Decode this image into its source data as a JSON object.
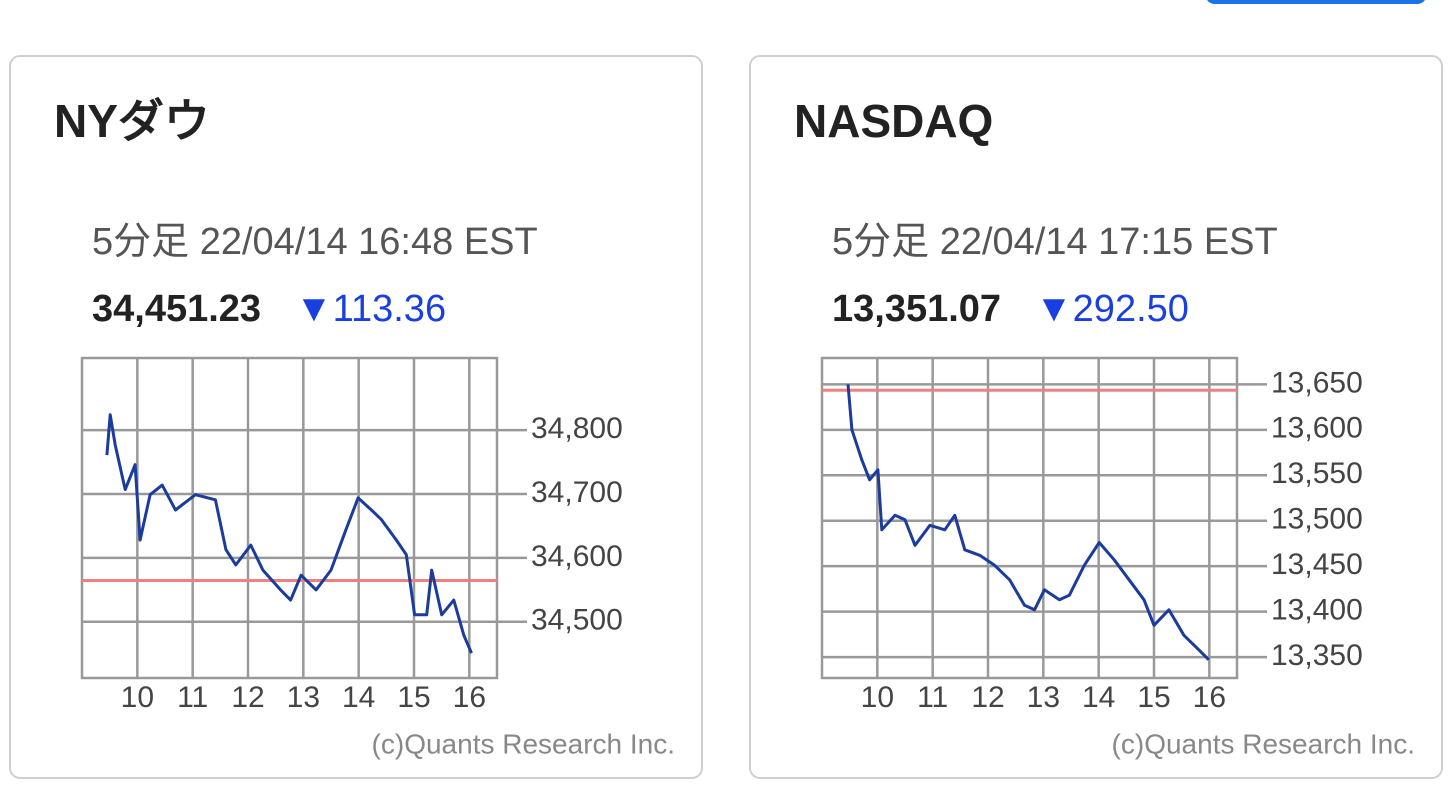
{
  "chart_data": [
    {
      "type": "line",
      "title": "NYダウ",
      "subtitle": "5分足 22/04/14 16:48 EST",
      "price": "34,451.23",
      "change": "▼113.36",
      "x": [
        9.45,
        9.51,
        9.6,
        9.78,
        9.96,
        10.05,
        10.23,
        10.45,
        10.69,
        11.05,
        11.41,
        11.6,
        11.78,
        12.05,
        12.27,
        12.59,
        12.77,
        12.96,
        13.23,
        13.5,
        13.77,
        13.99,
        14.23,
        14.41,
        14.68,
        14.86,
        15.01,
        15.23,
        15.32,
        15.5,
        15.72,
        15.9,
        16.04
      ],
      "values": [
        34761,
        34824,
        34777,
        34707,
        34746,
        34628,
        34699,
        34714,
        34675,
        34699,
        34691,
        34613,
        34589,
        34620,
        34581,
        34550,
        34534,
        34573,
        34550,
        34581,
        34644,
        34694,
        34675,
        34660,
        34628,
        34605,
        34511,
        34511,
        34581,
        34511,
        34534,
        34479,
        34451
      ],
      "color": "#1b3c9c",
      "reference_line": 34564.59,
      "reference_color": "#f08080",
      "xlim": [
        9,
        16.5
      ],
      "xticks": [
        10,
        11,
        12,
        13,
        14,
        15,
        16
      ],
      "ylim": [
        34412,
        34913
      ],
      "yticks": [
        {
          "value": 34500,
          "label": "34,500"
        },
        {
          "value": 34600,
          "label": "34,600"
        },
        {
          "value": 34700,
          "label": "34,700"
        },
        {
          "value": 34800,
          "label": "34,800"
        }
      ],
      "grid": true,
      "credit": "(c)Quants Research Inc."
    },
    {
      "type": "line",
      "title": "NASDAQ",
      "subtitle": "5分足 22/04/14 17:15 EST",
      "price": "13,351.07",
      "change": "▼292.50",
      "x": [
        9.47,
        9.54,
        9.72,
        9.86,
        10.01,
        10.08,
        10.32,
        10.5,
        10.68,
        10.95,
        11.22,
        11.4,
        11.58,
        11.85,
        12.12,
        12.39,
        12.66,
        12.84,
        13.02,
        13.29,
        13.47,
        13.74,
        14.01,
        14.28,
        14.55,
        14.82,
        15.0,
        15.27,
        15.54,
        15.81,
        15.99
      ],
      "values": [
        13650,
        13600,
        13567,
        13545,
        13556,
        13490,
        13506,
        13501,
        13473,
        13495,
        13490,
        13506,
        13468,
        13462,
        13451,
        13435,
        13407,
        13402,
        13424,
        13413,
        13418,
        13451,
        13476,
        13457,
        13435,
        13413,
        13385,
        13402,
        13374,
        13358,
        13347
      ],
      "color": "#1b3c9c",
      "reference_line": 13643.57,
      "reference_color": "#f08080",
      "xlim": [
        9,
        16.5
      ],
      "xticks": [
        10,
        11,
        12,
        13,
        14,
        15,
        16
      ],
      "ylim": [
        13327,
        13679
      ],
      "yticks": [
        {
          "value": 13350,
          "label": "13,350"
        },
        {
          "value": 13400,
          "label": "13,400"
        },
        {
          "value": 13450,
          "label": "13,450"
        },
        {
          "value": 13500,
          "label": "13,500"
        },
        {
          "value": 13550,
          "label": "13,550"
        },
        {
          "value": 13600,
          "label": "13,600"
        },
        {
          "value": 13650,
          "label": "13,650"
        }
      ],
      "grid": true,
      "credit": "(c)Quants Research Inc."
    }
  ]
}
